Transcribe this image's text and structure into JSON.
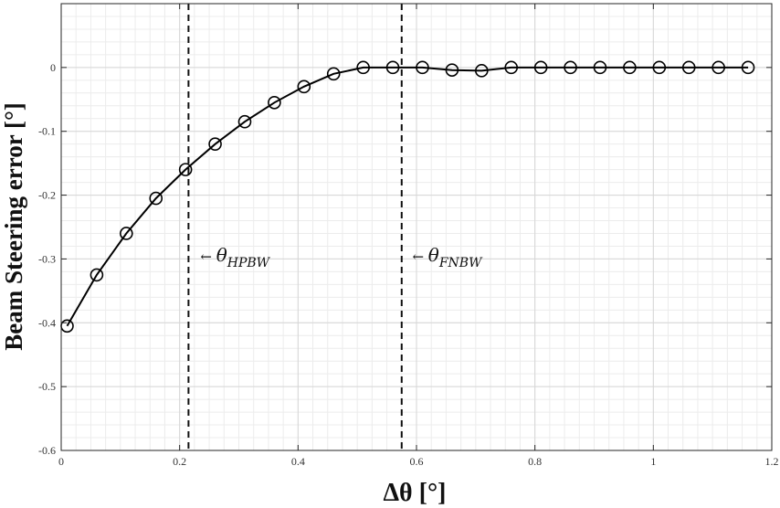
{
  "chart_data": {
    "type": "line",
    "title": "",
    "xlabel": "Δθ [°]",
    "ylabel": "Beam Steering error [°]",
    "xlim": [
      0,
      1.2
    ],
    "ylim": [
      -0.6,
      0.1
    ],
    "grid": true,
    "minor_grid": true,
    "x_ticks": [
      0,
      0.2,
      0.4,
      0.6,
      0.8,
      1,
      1.2
    ],
    "x_tick_labels": [
      "0",
      "0.2",
      "0.4",
      "0.6",
      "0.8",
      "1",
      "1.2"
    ],
    "y_ticks": [
      0,
      -0.1,
      -0.2,
      -0.3,
      -0.4,
      -0.5,
      -0.6
    ],
    "y_tick_labels": [
      "0",
      "-0.1",
      "-0.2",
      "-0.3",
      "-0.4",
      "-0.5",
      "-0.6"
    ],
    "series": [
      {
        "marker": "circle",
        "color": "#000000",
        "x": [
          0.01,
          0.06,
          0.11,
          0.16,
          0.21,
          0.26,
          0.31,
          0.36,
          0.41,
          0.46,
          0.51,
          0.56,
          0.61,
          0.66,
          0.71,
          0.76,
          0.81,
          0.86,
          0.91,
          0.96,
          1.01,
          1.06,
          1.11,
          1.16
        ],
        "y": [
          -0.405,
          -0.325,
          -0.26,
          -0.205,
          -0.16,
          -0.12,
          -0.085,
          -0.055,
          -0.03,
          -0.01,
          0,
          0,
          0,
          -0.004,
          -0.005,
          0,
          0,
          0,
          0,
          0,
          0,
          0,
          0,
          0
        ]
      }
    ],
    "reference_lines": [
      {
        "x": 0.215,
        "style": "dashed"
      },
      {
        "x": 0.575,
        "style": "dashed"
      }
    ],
    "annotations": [
      {
        "symbol": "θ",
        "subscript": "HPBW",
        "arrow": "←",
        "x": 0.235,
        "y": -0.295
      },
      {
        "symbol": "θ",
        "subscript": "FNBW",
        "arrow": "←",
        "x": 0.593,
        "y": -0.295
      }
    ]
  }
}
